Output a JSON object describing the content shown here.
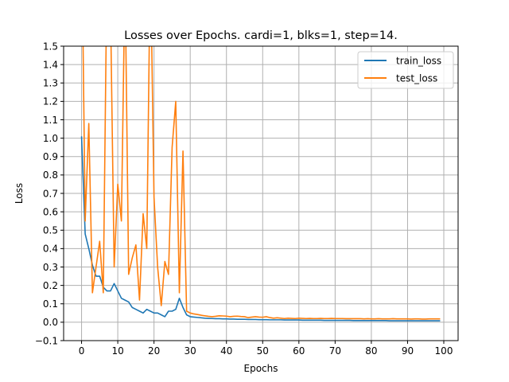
{
  "chart_data": {
    "type": "line",
    "title": "Losses over Epochs. cardi=1, blks=1, step=14.",
    "xlabel": "Epochs",
    "ylabel": "Loss",
    "xlim": [
      -4.95,
      103.95
    ],
    "ylim": [
      -0.1,
      1.5
    ],
    "xticks": [
      0,
      10,
      20,
      30,
      40,
      50,
      60,
      70,
      80,
      90,
      100
    ],
    "yticks": [
      -0.1,
      0.0,
      0.1,
      0.2,
      0.3,
      0.4,
      0.5,
      0.6,
      0.7,
      0.8,
      0.9,
      1.0,
      1.1,
      1.2,
      1.3,
      1.4,
      1.5
    ],
    "ytick_labels": [
      "−0.1",
      "0.0",
      "0.1",
      "0.2",
      "0.3",
      "0.4",
      "0.5",
      "0.6",
      "0.7",
      "0.8",
      "0.9",
      "1.0",
      "1.1",
      "1.2",
      "1.3",
      "1.4",
      "1.5"
    ],
    "grid": true,
    "legend_position": "top-right",
    "x": [
      0,
      1,
      2,
      3,
      4,
      5,
      6,
      7,
      8,
      9,
      10,
      11,
      12,
      13,
      14,
      15,
      16,
      17,
      18,
      19,
      20,
      21,
      22,
      23,
      24,
      25,
      26,
      27,
      28,
      29,
      30,
      31,
      32,
      33,
      34,
      35,
      36,
      37,
      38,
      39,
      40,
      41,
      42,
      43,
      44,
      45,
      46,
      47,
      48,
      49,
      50,
      51,
      52,
      53,
      54,
      55,
      56,
      57,
      58,
      59,
      60,
      61,
      62,
      63,
      64,
      65,
      66,
      67,
      68,
      69,
      70,
      71,
      72,
      73,
      74,
      75,
      76,
      77,
      78,
      79,
      80,
      81,
      82,
      83,
      84,
      85,
      86,
      87,
      88,
      89,
      90,
      91,
      92,
      93,
      94,
      95,
      96,
      97,
      98,
      99
    ],
    "series": [
      {
        "name": "train_loss",
        "color": "#1f77b4",
        "values": [
          1.01,
          0.48,
          0.4,
          0.31,
          0.25,
          0.25,
          0.19,
          0.17,
          0.17,
          0.21,
          0.17,
          0.13,
          0.12,
          0.11,
          0.08,
          0.07,
          0.06,
          0.05,
          0.07,
          0.06,
          0.05,
          0.05,
          0.04,
          0.03,
          0.06,
          0.06,
          0.07,
          0.13,
          0.08,
          0.04,
          0.03,
          0.028,
          0.026,
          0.024,
          0.022,
          0.021,
          0.02,
          0.019,
          0.019,
          0.018,
          0.018,
          0.017,
          0.017,
          0.016,
          0.016,
          0.016,
          0.015,
          0.015,
          0.015,
          0.014,
          0.014,
          0.014,
          0.013,
          0.013,
          0.013,
          0.013,
          0.012,
          0.012,
          0.012,
          0.012,
          0.012,
          0.011,
          0.011,
          0.011,
          0.011,
          0.011,
          0.011,
          0.01,
          0.01,
          0.01,
          0.01,
          0.01,
          0.01,
          0.01,
          0.01,
          0.009,
          0.009,
          0.009,
          0.009,
          0.009,
          0.009,
          0.009,
          0.009,
          0.009,
          0.009,
          0.008,
          0.008,
          0.008,
          0.008,
          0.008,
          0.008,
          0.008,
          0.008,
          0.008,
          0.008,
          0.008,
          0.008,
          0.008,
          0.008,
          0.008
        ]
      },
      {
        "name": "test_loss",
        "color": "#ff7f0e",
        "values": [
          2.2,
          0.55,
          1.08,
          0.16,
          0.3,
          0.44,
          0.16,
          1.9,
          1.7,
          0.3,
          0.75,
          0.55,
          1.9,
          0.26,
          0.35,
          0.42,
          0.12,
          0.59,
          0.4,
          2.0,
          0.68,
          0.3,
          0.09,
          0.33,
          0.26,
          0.95,
          1.2,
          0.16,
          0.93,
          0.06,
          0.05,
          0.045,
          0.042,
          0.038,
          0.035,
          0.032,
          0.03,
          0.032,
          0.035,
          0.034,
          0.033,
          0.03,
          0.032,
          0.033,
          0.031,
          0.03,
          0.025,
          0.028,
          0.03,
          0.028,
          0.027,
          0.03,
          0.025,
          0.022,
          0.024,
          0.022,
          0.02,
          0.022,
          0.021,
          0.02,
          0.022,
          0.021,
          0.02,
          0.021,
          0.02,
          0.02,
          0.021,
          0.02,
          0.02,
          0.021,
          0.02,
          0.02,
          0.02,
          0.019,
          0.019,
          0.019,
          0.019,
          0.019,
          0.018,
          0.019,
          0.018,
          0.018,
          0.019,
          0.018,
          0.018,
          0.018,
          0.019,
          0.018,
          0.018,
          0.018,
          0.018,
          0.017,
          0.018,
          0.018,
          0.017,
          0.017,
          0.018,
          0.018,
          0.018,
          0.018
        ]
      }
    ]
  }
}
